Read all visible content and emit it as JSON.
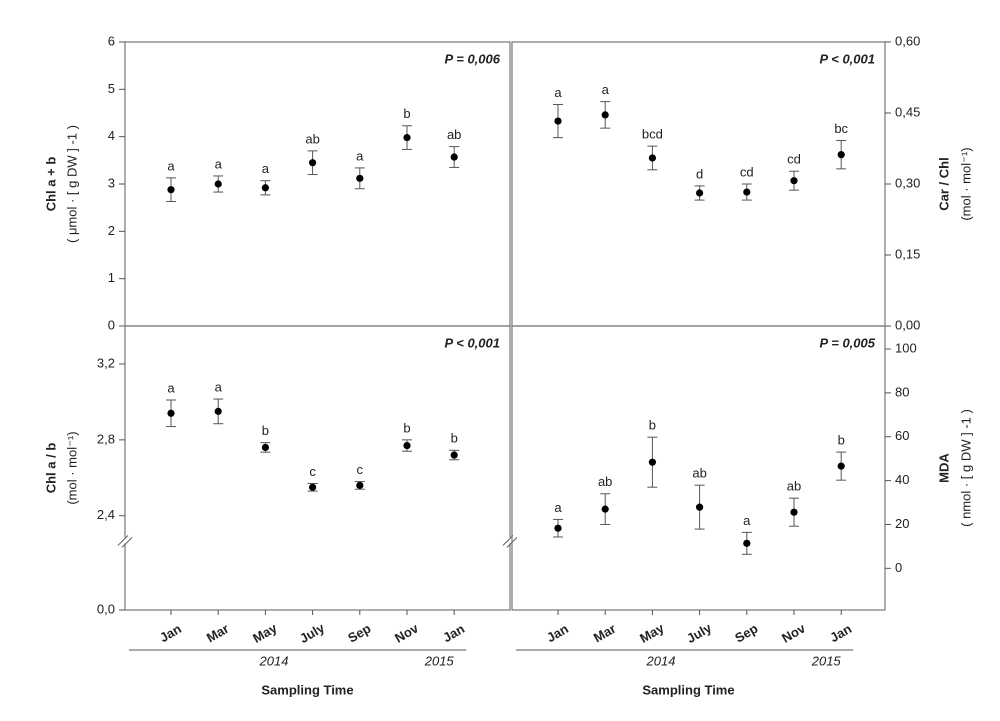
{
  "chart_data": [
    {
      "type": "errorbar",
      "color": "#000000",
      "yaxis": "left",
      "ylabel": "Chl a + b",
      "yunit": "( μmol · [ g DW ] -1 )",
      "annotation": "P = 0,006",
      "categories": [
        "Jan",
        "Mar",
        "May",
        "July",
        "Sep",
        "Nov",
        "Jan"
      ],
      "values": [
        2.88,
        3.0,
        2.92,
        3.45,
        3.12,
        3.98,
        3.57
      ],
      "errors": [
        0.25,
        0.17,
        0.15,
        0.25,
        0.22,
        0.25,
        0.22
      ],
      "letters": [
        "a",
        "a",
        "a",
        "ab",
        "a",
        "b",
        "ab"
      ],
      "ylim": [
        0,
        6
      ],
      "yticks": [
        0,
        1,
        2,
        3,
        4,
        5,
        6
      ]
    },
    {
      "type": "errorbar",
      "color": "#000000",
      "yaxis": "right",
      "ylabel": "Car / Chl",
      "yunit": "(mol · mol⁻¹)",
      "annotation": "P < 0,001",
      "categories": [
        "Jan",
        "Mar",
        "May",
        "July",
        "Sep",
        "Nov",
        "Jan"
      ],
      "values": [
        0.433,
        0.446,
        0.355,
        0.281,
        0.283,
        0.307,
        0.362
      ],
      "errors": [
        0.035,
        0.028,
        0.025,
        0.015,
        0.017,
        0.02,
        0.03
      ],
      "letters": [
        "a",
        "a",
        "bcd",
        "d",
        "cd",
        "cd",
        "bc"
      ],
      "ylim": [
        0,
        0.6
      ],
      "yticks": [
        {
          "value": 0,
          "label": "0,00"
        },
        {
          "value": 0.15,
          "label": "0,15"
        },
        {
          "value": 0.3,
          "label": "0,30"
        },
        {
          "value": 0.45,
          "label": "0,45"
        },
        {
          "value": 0.6,
          "label": "0,60"
        }
      ]
    },
    {
      "type": "errorbar",
      "color": "#000000",
      "yaxis": "left",
      "ylabel": "Chl a / b",
      "yunit": "(mol · mol⁻¹)",
      "annotation": "P < 0,001",
      "categories": [
        "Jan",
        "Mar",
        "May",
        "July",
        "Sep",
        "Nov",
        "Jan"
      ],
      "values": [
        2.94,
        2.95,
        2.76,
        2.55,
        2.56,
        2.77,
        2.72
      ],
      "errors": [
        0.07,
        0.065,
        0.025,
        0.02,
        0.02,
        0.03,
        0.025
      ],
      "letters": [
        "a",
        "a",
        "b",
        "c",
        "c",
        "b",
        "b"
      ],
      "ylim": [
        0,
        3.4
      ],
      "axis_break": [
        0,
        2.27
      ],
      "yticks": [
        {
          "value": 0,
          "label": "0,0"
        },
        {
          "value": 2.4,
          "label": "2,4"
        },
        {
          "value": 2.8,
          "label": "2,8"
        },
        {
          "value": 3.2,
          "label": "3,2"
        }
      ],
      "xlabel": "Sampling Time",
      "x_groups": [
        {
          "label": "2014",
          "count": 6
        },
        {
          "label": "2015",
          "count": 1
        }
      ]
    },
    {
      "type": "errorbar",
      "color": "#000000",
      "yaxis": "right",
      "ylabel": "MDA",
      "yunit": "( nmol · [ g DW ] -1 )",
      "annotation": "P = 0,005",
      "categories": [
        "Jan",
        "Mar",
        "May",
        "July",
        "Sep",
        "Nov",
        "Jan"
      ],
      "values": [
        18.3,
        27,
        48.4,
        27.9,
        11.4,
        25.6,
        46.6
      ],
      "errors": [
        4,
        7,
        11.4,
        10,
        5,
        6.4,
        6.4
      ],
      "letters": [
        "a",
        "ab",
        "b",
        "ab",
        "a",
        "ab",
        "b"
      ],
      "ylim": [
        -19,
        110.5
      ],
      "yticks": [
        0,
        20,
        40,
        60,
        80,
        100
      ],
      "xlabel": "Sampling Time",
      "x_groups": [
        {
          "label": "2014",
          "count": 6
        },
        {
          "label": "2015",
          "count": 1
        }
      ]
    }
  ]
}
